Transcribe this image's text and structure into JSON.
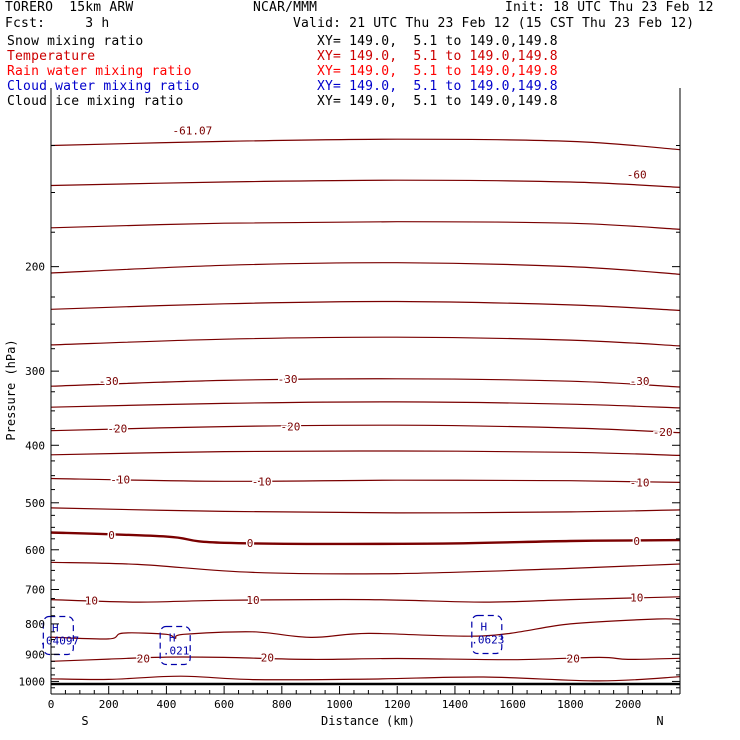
{
  "header": {
    "model": "TORERO  15km ARW",
    "center": "NCAR/MMM",
    "init": "Init: 18 UTC Thu 23 Feb 12",
    "fcst": "Fcst:     3 h",
    "valid": "Valid: 21 UTC Thu 23 Feb 12 (15 CST Thu 23 Feb 12)"
  },
  "fields": [
    {
      "name": "Snow mixing ratio",
      "xy": "XY= 149.0,  5.1 to 149.0,149.8",
      "color": "#000000"
    },
    {
      "name": "Temperature",
      "xy": "XY= 149.0,  5.1 to 149.0,149.8",
      "color": "#cc0000"
    },
    {
      "name": "Rain water mixing ratio",
      "xy": "XY= 149.0,  5.1 to 149.0,149.8",
      "color": "#ff0000"
    },
    {
      "name": "Cloud water mixing ratio",
      "xy": "XY= 149.0,  5.1 to 149.0,149.8",
      "color": "#0000cc"
    },
    {
      "name": "Cloud ice mixing ratio",
      "xy": "XY= 149.0,  5.1 to 149.0,149.8",
      "color": "#000000"
    }
  ],
  "colors": {
    "temperature": "#7a0000",
    "cloud_water": "#0000aa",
    "axis": "#000000"
  },
  "chart_data": {
    "type": "line",
    "xlabel": "Distance (km)",
    "ylabel": "Pressure (hPa)",
    "xlim": [
      0,
      2180
    ],
    "ylim": [
      100,
      1050
    ],
    "y_scale": "log",
    "x_ticks": [
      0,
      200,
      400,
      600,
      800,
      1000,
      1200,
      1400,
      1600,
      1800,
      2000
    ],
    "y_ticks": [
      200,
      300,
      400,
      500,
      600,
      700,
      800,
      900,
      1000
    ],
    "x_end_labels": {
      "left": "S",
      "right": "N"
    },
    "ground_pressure": 1010,
    "temperature_contours": [
      {
        "level": -60,
        "points": [
          [
            0,
            125
          ],
          [
            600,
            123
          ],
          [
            1200,
            122
          ],
          [
            1800,
            123
          ],
          [
            2180,
            127
          ]
        ]
      },
      {
        "level": -55,
        "points": [
          [
            0,
            146
          ],
          [
            600,
            144
          ],
          [
            1200,
            143
          ],
          [
            1800,
            144
          ],
          [
            2180,
            147
          ]
        ]
      },
      {
        "level": -50,
        "points": [
          [
            0,
            172
          ],
          [
            600,
            169
          ],
          [
            1200,
            168
          ],
          [
            1800,
            169
          ],
          [
            2180,
            173
          ]
        ]
      },
      {
        "level": -45,
        "points": [
          [
            0,
            205
          ],
          [
            600,
            199
          ],
          [
            1200,
            197
          ],
          [
            1800,
            200
          ],
          [
            2180,
            206
          ]
        ]
      },
      {
        "level": -40,
        "points": [
          [
            0,
            236
          ],
          [
            600,
            231
          ],
          [
            1200,
            229
          ],
          [
            1800,
            232
          ],
          [
            2180,
            237
          ]
        ]
      },
      {
        "level": -35,
        "points": [
          [
            0,
            271
          ],
          [
            600,
            265
          ],
          [
            1200,
            263
          ],
          [
            1800,
            266
          ],
          [
            2180,
            272
          ]
        ]
      },
      {
        "level": -30,
        "points": [
          [
            0,
            318
          ],
          [
            600,
            311
          ],
          [
            1200,
            309
          ],
          [
            1800,
            312
          ],
          [
            2180,
            319
          ]
        ]
      },
      {
        "level": -25,
        "points": [
          [
            0,
            345
          ],
          [
            600,
            340
          ],
          [
            1200,
            338
          ],
          [
            1800,
            341
          ],
          [
            2180,
            346
          ]
        ]
      },
      {
        "level": -20,
        "points": [
          [
            0,
            378
          ],
          [
            600,
            372
          ],
          [
            1200,
            370
          ],
          [
            1800,
            374
          ],
          [
            2180,
            381
          ]
        ]
      },
      {
        "level": -15,
        "points": [
          [
            0,
            415
          ],
          [
            600,
            410
          ],
          [
            1200,
            409
          ],
          [
            1800,
            411
          ],
          [
            2180,
            416
          ]
        ]
      },
      {
        "level": -10,
        "points": [
          [
            0,
            455
          ],
          [
            600,
            460
          ],
          [
            1200,
            458
          ],
          [
            1800,
            459
          ],
          [
            2180,
            462
          ]
        ]
      },
      {
        "level": -5,
        "points": [
          [
            0,
            510
          ],
          [
            600,
            517
          ],
          [
            1200,
            520
          ],
          [
            1800,
            518
          ],
          [
            2180,
            514
          ]
        ]
      },
      {
        "level": 0,
        "points": [
          [
            0,
            561
          ],
          [
            400,
            570
          ],
          [
            600,
            584
          ],
          [
            1300,
            586
          ],
          [
            1800,
            580
          ],
          [
            2180,
            578
          ]
        ]
      },
      {
        "level": 5,
        "points": [
          [
            0,
            630
          ],
          [
            300,
            635
          ],
          [
            700,
            655
          ],
          [
            1200,
            658
          ],
          [
            1800,
            645
          ],
          [
            2180,
            634
          ]
        ]
      },
      {
        "level": 10,
        "points": [
          [
            0,
            728
          ],
          [
            300,
            735
          ],
          [
            600,
            730
          ],
          [
            1100,
            728
          ],
          [
            1500,
            735
          ],
          [
            1800,
            728
          ],
          [
            2180,
            720
          ]
        ]
      },
      {
        "level": 15,
        "points": [
          [
            0,
            842
          ],
          [
            200,
            848
          ],
          [
            250,
            829
          ],
          [
            400,
            833
          ],
          [
            430,
            846
          ],
          [
            460,
            833
          ],
          [
            700,
            825
          ],
          [
            900,
            843
          ],
          [
            1100,
            830
          ],
          [
            1500,
            838
          ],
          [
            1800,
            800
          ],
          [
            2100,
            785
          ],
          [
            2180,
            787
          ]
        ]
      },
      {
        "level": 20,
        "points": [
          [
            0,
            925
          ],
          [
            200,
            917
          ],
          [
            400,
            910
          ],
          [
            600,
            911
          ],
          [
            900,
            918
          ],
          [
            1200,
            915
          ],
          [
            1600,
            919
          ],
          [
            1900,
            911
          ],
          [
            2000,
            918
          ],
          [
            2180,
            914
          ]
        ]
      },
      {
        "level": 25,
        "points": [
          [
            0,
            990
          ],
          [
            200,
            992
          ],
          [
            450,
            980
          ],
          [
            700,
            993
          ],
          [
            1100,
            991
          ],
          [
            1500,
            983
          ],
          [
            1900,
            998
          ],
          [
            2180,
            982
          ]
        ]
      }
    ],
    "temperature_labels": [
      {
        "text": "-61.07",
        "x": 490,
        "p": 118
      },
      {
        "text": "-60",
        "x": 2030,
        "p": 140
      },
      {
        "text": "-30",
        "x": 200,
        "p": 312
      },
      {
        "text": "-30",
        "x": 820,
        "p": 309
      },
      {
        "text": "-30",
        "x": 2040,
        "p": 312
      },
      {
        "text": "-20",
        "x": 230,
        "p": 375
      },
      {
        "text": "-20",
        "x": 830,
        "p": 372
      },
      {
        "text": "-20",
        "x": 2120,
        "p": 380
      },
      {
        "text": "-10",
        "x": 240,
        "p": 457
      },
      {
        "text": "-10",
        "x": 730,
        "p": 460
      },
      {
        "text": "-10",
        "x": 2040,
        "p": 462
      },
      {
        "text": "0",
        "x": 210,
        "p": 567
      },
      {
        "text": "0",
        "x": 690,
        "p": 584
      },
      {
        "text": "0",
        "x": 2030,
        "p": 580
      },
      {
        "text": "10",
        "x": 140,
        "p": 730
      },
      {
        "text": "10",
        "x": 700,
        "p": 729
      },
      {
        "text": "10",
        "x": 2030,
        "p": 722
      },
      {
        "text": "20",
        "x": 320,
        "p": 915
      },
      {
        "text": "20",
        "x": 750,
        "p": 911
      },
      {
        "text": "20",
        "x": 1810,
        "p": 914
      }
    ],
    "cloud_water_extrema": [
      {
        "marker": "H",
        "value": ".04097",
        "x": 15,
        "p": 808
      },
      {
        "marker": "H",
        "value": ".021",
        "x": 420,
        "p": 840
      },
      {
        "marker": "H",
        "value": ".0623",
        "x": 1500,
        "p": 805
      }
    ]
  }
}
